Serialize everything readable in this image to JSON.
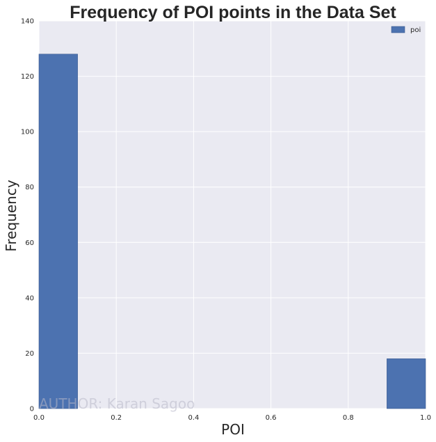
{
  "chart_data": {
    "type": "bar",
    "title": "Frequency of POI points in the Data Set",
    "xlabel": "POI",
    "ylabel": "Frequency",
    "xlim": [
      0,
      1
    ],
    "ylim": [
      0,
      140
    ],
    "xticks": [
      "0.0",
      "0.2",
      "0.4",
      "0.6",
      "0.8",
      "1.0"
    ],
    "xtick_values": [
      0,
      0.2,
      0.4,
      0.6,
      0.8,
      1.0
    ],
    "yticks": [
      "0",
      "20",
      "40",
      "60",
      "80",
      "100",
      "120",
      "140"
    ],
    "ytick_values": [
      0,
      20,
      40,
      60,
      80,
      100,
      120,
      140
    ],
    "bins": [
      {
        "start": 0.0,
        "end": 0.1,
        "value": 128
      },
      {
        "start": 0.9,
        "end": 1.0,
        "value": 18
      }
    ],
    "series": [
      {
        "name": "poi",
        "color": "#4c72b0"
      }
    ],
    "legend": {
      "position": "top-right",
      "entries": [
        "poi"
      ]
    },
    "grid": true,
    "background": "#eaeaf2",
    "grid_color": "#ffffff",
    "watermark": "AUTHOR: Karan Sagoo"
  }
}
